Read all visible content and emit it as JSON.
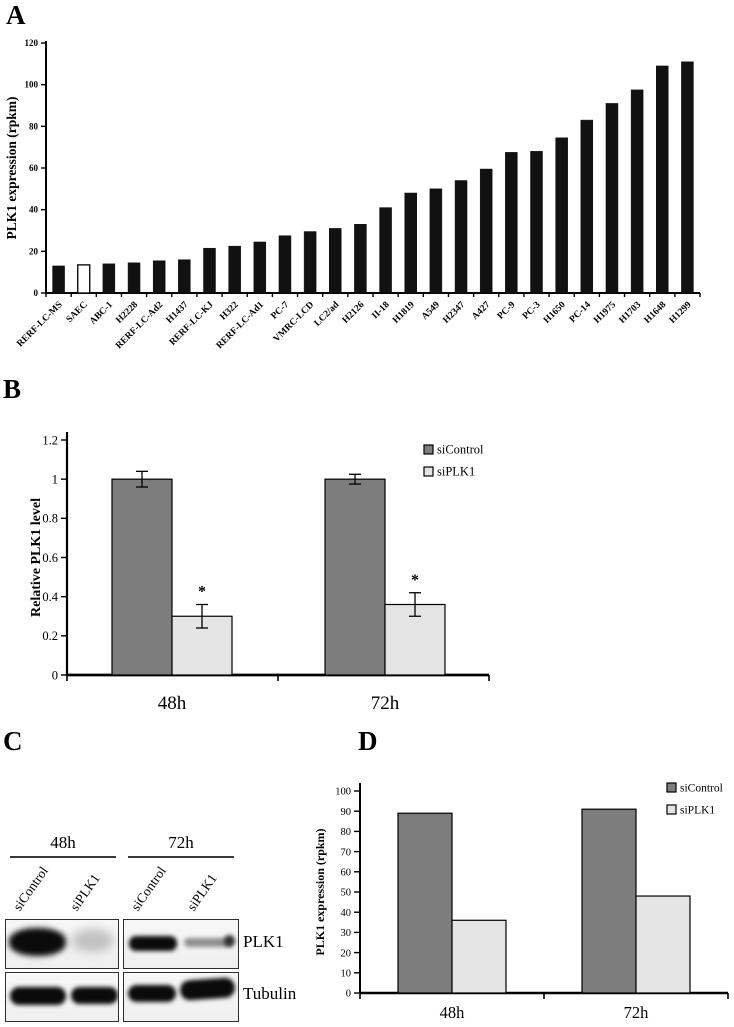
{
  "panels": {
    "a": {
      "label": "A"
    },
    "b": {
      "label": "B"
    },
    "c": {
      "label": "C",
      "time_groups": [
        {
          "label": "48h"
        },
        {
          "label": "72h"
        }
      ],
      "lane_labels": [
        "siControl",
        "siPLK1",
        "siControl",
        "siPLK1"
      ],
      "rows": [
        {
          "label": "PLK1",
          "band_intensities": [
            "strong",
            "faint",
            "strong",
            "weak"
          ]
        },
        {
          "label": "Tubulin",
          "band_intensities": [
            "strong",
            "strong",
            "strong",
            "strong"
          ]
        }
      ]
    },
    "d": {
      "label": "D"
    }
  },
  "colors": {
    "bar_black": "#111111",
    "open_bar": "#ffffff",
    "siControl": "#7d7d7d",
    "siPLK1": "#e4e4e4"
  },
  "chart_data": [
    {
      "id": "panel-a",
      "type": "bar",
      "title": "",
      "xlabel": "",
      "ylabel": "PLK1 expression (rpkm)",
      "ylim": [
        0,
        120
      ],
      "yticks": [
        0,
        20,
        40,
        60,
        80,
        100,
        120
      ],
      "grid": false,
      "categories": [
        "RERF-LC-MS",
        "SAEC",
        "ABC-1",
        "H2228",
        "RERF-LC-Ad2",
        "H1437",
        "RERF-LC-KJ",
        "H322",
        "RERF-LC-Ad1",
        "PC-7",
        "VMRC-LCD",
        "LC2/ad",
        "H2126",
        "II-18",
        "H1819",
        "A549",
        "H2347",
        "A427",
        "PC-9",
        "PC-3",
        "H1650",
        "PC-14",
        "H1975",
        "H1703",
        "H1648",
        "H1299"
      ],
      "values": [
        13,
        13.5,
        14,
        14.5,
        15.5,
        16,
        21.5,
        22.5,
        24.5,
        27.5,
        29.5,
        31,
        33,
        41,
        48,
        50,
        54,
        59.5,
        67.5,
        68,
        74.5,
        83,
        91,
        97.5,
        109,
        111
      ],
      "open_bar_categories": [
        "SAEC"
      ],
      "bar_color": "#111111",
      "open_bar_color": "#ffffff"
    },
    {
      "id": "panel-b",
      "type": "grouped_bar",
      "title": "",
      "xlabel": "",
      "ylabel": "Relative PLK1 level",
      "ylim": [
        0,
        1.2
      ],
      "yticks": [
        0,
        0.2,
        0.4,
        0.6,
        0.8,
        1,
        1.2
      ],
      "grid": false,
      "legend_position": "top-right",
      "categories": [
        "48h",
        "72h"
      ],
      "series": [
        {
          "name": "siControl",
          "values": [
            1.0,
            1.0
          ],
          "errors": [
            0.04,
            0.025
          ],
          "color": "#7d7d7d"
        },
        {
          "name": "siPLK1",
          "values": [
            0.3,
            0.36
          ],
          "errors": [
            0.06,
            0.06
          ],
          "color": "#e4e4e4",
          "sig_labels": [
            "*",
            "*"
          ]
        }
      ]
    },
    {
      "id": "panel-d",
      "type": "grouped_bar",
      "title": "",
      "xlabel": "",
      "ylabel": "PLK1 expression (rpkm)",
      "ylim": [
        0,
        100
      ],
      "yticks": [
        0,
        10,
        20,
        30,
        40,
        50,
        60,
        70,
        80,
        90,
        100
      ],
      "grid": false,
      "legend_position": "top-right",
      "categories": [
        "48h",
        "72h"
      ],
      "series": [
        {
          "name": "siControl",
          "values": [
            89,
            91
          ],
          "color": "#7d7d7d"
        },
        {
          "name": "siPLK1",
          "values": [
            36,
            48
          ],
          "color": "#e4e4e4"
        }
      ]
    }
  ]
}
